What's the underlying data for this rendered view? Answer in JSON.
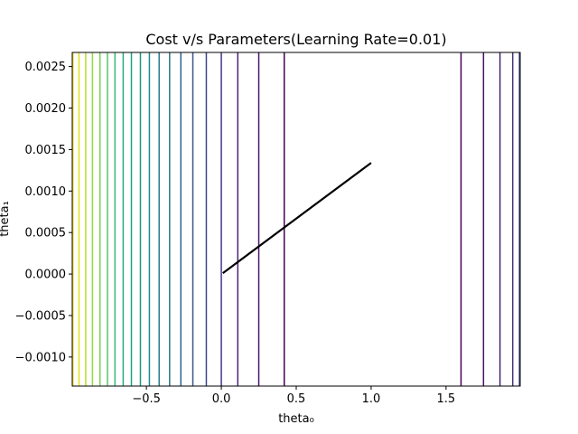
{
  "chart_data": {
    "type": "line",
    "title": "Cost v/s Parameters(Learning Rate=0.01)",
    "xlabel": "theta₀",
    "ylabel": "theta₁",
    "xlim": [
      -0.995,
      1.995
    ],
    "ylim": [
      -0.00135,
      0.00267
    ],
    "x_ticks": [
      {
        "value": -0.5,
        "label": "−0.5"
      },
      {
        "value": 0.0,
        "label": "0.0"
      },
      {
        "value": 0.5,
        "label": "0.5"
      },
      {
        "value": 1.0,
        "label": "1.0"
      },
      {
        "value": 1.5,
        "label": "1.5"
      }
    ],
    "y_ticks": [
      {
        "value": -0.001,
        "label": "−0.0010"
      },
      {
        "value": -0.0005,
        "label": "−0.0005"
      },
      {
        "value": 0.0,
        "label": "0.0000"
      },
      {
        "value": 0.0005,
        "label": "0.0005"
      },
      {
        "value": 0.001,
        "label": "0.0010"
      },
      {
        "value": 0.0015,
        "label": "0.0015"
      },
      {
        "value": 0.002,
        "label": "0.0020"
      },
      {
        "value": 0.0025,
        "label": "0.0025"
      }
    ],
    "contour_levels": [
      {
        "x": -0.99,
        "color": "#fde725"
      },
      {
        "x": -0.95,
        "color": "#dde318"
      },
      {
        "x": -0.905,
        "color": "#bade28"
      },
      {
        "x": -0.86,
        "color": "#95d840"
      },
      {
        "x": -0.81,
        "color": "#75d054"
      },
      {
        "x": -0.76,
        "color": "#56c667"
      },
      {
        "x": -0.71,
        "color": "#3dbc74"
      },
      {
        "x": -0.655,
        "color": "#29af7f"
      },
      {
        "x": -0.6,
        "color": "#20a386"
      },
      {
        "x": -0.54,
        "color": "#1f968b"
      },
      {
        "x": -0.48,
        "color": "#238a8d"
      },
      {
        "x": -0.415,
        "color": "#287d8e"
      },
      {
        "x": -0.345,
        "color": "#2d718e"
      },
      {
        "x": -0.27,
        "color": "#33638d"
      },
      {
        "x": -0.19,
        "color": "#39568c"
      },
      {
        "x": -0.1,
        "color": "#3f4889"
      },
      {
        "x": 0.0,
        "color": "#453781"
      },
      {
        "x": 0.11,
        "color": "#482576"
      },
      {
        "x": 0.25,
        "color": "#481467"
      },
      {
        "x": 0.42,
        "color": "#440154"
      },
      {
        "x": 1.6,
        "color": "#440154"
      },
      {
        "x": 1.75,
        "color": "#481467"
      },
      {
        "x": 1.86,
        "color": "#482576"
      },
      {
        "x": 1.945,
        "color": "#453781"
      },
      {
        "x": 1.99,
        "color": "#3f4889"
      }
    ],
    "series": [
      {
        "color": "#000000",
        "x": [
          0.01,
          1.0
        ],
        "y": [
          1e-05,
          0.00134
        ]
      }
    ],
    "grid": false,
    "legend": "none"
  }
}
